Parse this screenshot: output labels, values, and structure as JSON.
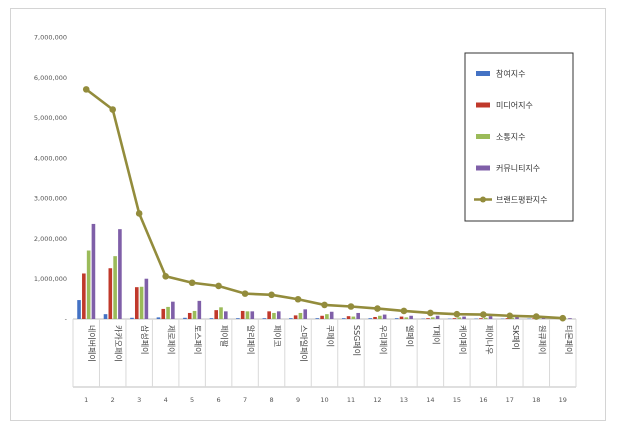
{
  "chart_data": {
    "type": "bar",
    "categories": [
      "네이버페이",
      "카카오페이",
      "삼성페이",
      "제로페이",
      "토스페이",
      "페이팔",
      "알리페이",
      "페이코",
      "스마일페이",
      "쿠페이",
      "SSG페이",
      "우리페이",
      "엘페이",
      "T페이",
      "케이페이",
      "페이나우",
      "SK페이",
      "원큐페이",
      "티몬페이"
    ],
    "indices": [
      "1",
      "2",
      "3",
      "4",
      "5",
      "6",
      "7",
      "8",
      "9",
      "10",
      "11",
      "12",
      "13",
      "14",
      "15",
      "16",
      "17",
      "18",
      "19"
    ],
    "ylim": [
      0,
      7000000
    ],
    "yticks": [
      "-",
      "1,000,000",
      "2,000,000",
      "3,000,000",
      "4,000,000",
      "5,000,000",
      "6,000,000",
      "7,000,000"
    ],
    "grid": false,
    "legend_position": "top-right",
    "series": [
      {
        "name": "참여지수",
        "type": "bar",
        "color": "#4472c4",
        "values": [
          470000,
          120000,
          30000,
          40000,
          30000,
          20000,
          20000,
          20000,
          20000,
          20000,
          20000,
          20000,
          20000,
          10000,
          10000,
          10000,
          10000,
          10000,
          5000
        ]
      },
      {
        "name": "미디어지수",
        "type": "bar",
        "color": "#c0392b",
        "values": [
          1130000,
          1260000,
          790000,
          250000,
          150000,
          220000,
          200000,
          190000,
          90000,
          80000,
          70000,
          50000,
          60000,
          20000,
          20000,
          20000,
          20000,
          15000,
          10000
        ]
      },
      {
        "name": "소통지수",
        "type": "bar",
        "color": "#9bbb59",
        "values": [
          1700000,
          1560000,
          800000,
          300000,
          200000,
          290000,
          190000,
          150000,
          150000,
          120000,
          60000,
          80000,
          40000,
          40000,
          40000,
          30000,
          30000,
          20000,
          10000
        ]
      },
      {
        "name": "커뮤니티지수",
        "type": "bar",
        "color": "#7f5fa8",
        "values": [
          2360000,
          2230000,
          1000000,
          430000,
          450000,
          190000,
          190000,
          190000,
          240000,
          180000,
          150000,
          110000,
          80000,
          80000,
          60000,
          70000,
          50000,
          40000,
          20000
        ]
      },
      {
        "name": "브랜드평판지수",
        "type": "line",
        "color": "#938c3c",
        "values": [
          5700000,
          5200000,
          2620000,
          1060000,
          900000,
          820000,
          630000,
          600000,
          490000,
          350000,
          310000,
          260000,
          200000,
          150000,
          120000,
          110000,
          80000,
          60000,
          20000
        ]
      }
    ]
  }
}
